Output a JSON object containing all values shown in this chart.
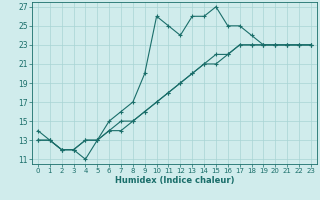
{
  "title": "",
  "xlabel": "Humidex (Indice chaleur)",
  "bg_color": "#d0ecec",
  "grid_color": "#a8d4d4",
  "line_color": "#1a6e6a",
  "xlim": [
    -0.5,
    23.5
  ],
  "ylim": [
    10.5,
    27.5
  ],
  "xticks": [
    0,
    1,
    2,
    3,
    4,
    5,
    6,
    7,
    8,
    9,
    10,
    11,
    12,
    13,
    14,
    15,
    16,
    17,
    18,
    19,
    20,
    21,
    22,
    23
  ],
  "yticks": [
    11,
    13,
    15,
    17,
    19,
    21,
    23,
    25,
    27
  ],
  "line1_x": [
    0,
    1,
    2,
    3,
    4,
    5,
    6,
    7,
    8,
    9,
    10,
    11,
    12,
    13,
    14,
    15,
    16,
    17,
    18,
    19,
    20,
    21,
    22,
    23
  ],
  "line1_y": [
    14,
    13,
    12,
    12,
    11,
    13,
    15,
    16,
    17,
    20,
    26,
    25,
    24,
    26,
    26,
    27,
    25,
    25,
    24,
    23,
    23,
    23,
    23,
    23
  ],
  "line2_x": [
    0,
    1,
    2,
    3,
    4,
    5,
    6,
    7,
    8,
    9,
    10,
    11,
    12,
    13,
    14,
    15,
    16,
    17,
    18,
    19,
    20,
    21,
    22,
    23
  ],
  "line2_y": [
    13,
    13,
    12,
    12,
    13,
    13,
    14,
    15,
    15,
    16,
    17,
    18,
    19,
    20,
    21,
    21,
    22,
    23,
    23,
    23,
    23,
    23,
    23,
    23
  ],
  "line3_x": [
    0,
    1,
    2,
    3,
    4,
    5,
    6,
    7,
    8,
    9,
    10,
    11,
    12,
    13,
    14,
    15,
    16,
    17,
    18,
    19,
    20,
    21,
    22,
    23
  ],
  "line3_y": [
    13,
    13,
    12,
    12,
    13,
    13,
    14,
    14,
    15,
    16,
    17,
    18,
    19,
    20,
    21,
    22,
    22,
    23,
    23,
    23,
    23,
    23,
    23,
    23
  ]
}
